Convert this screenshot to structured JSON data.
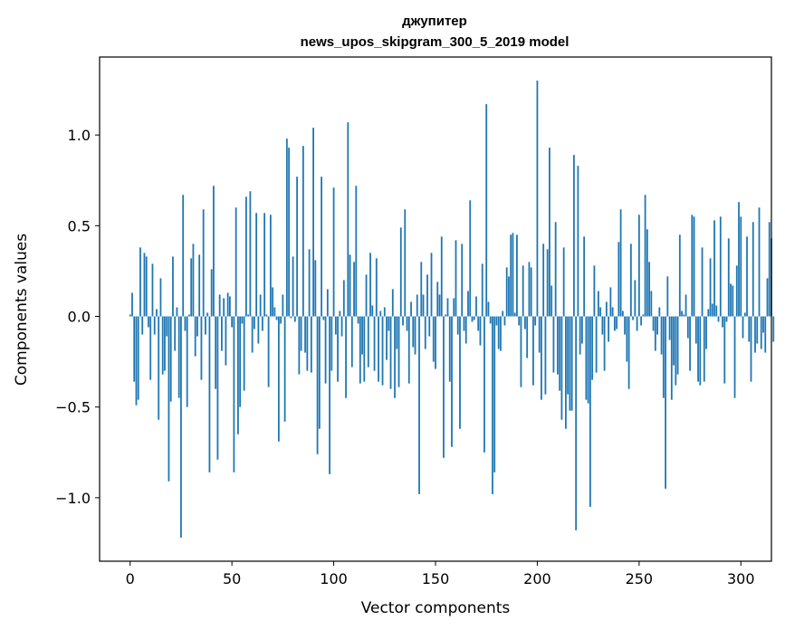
{
  "chart_data": {
    "type": "bar",
    "title_lines": [
      "джупитер",
      "news_upos_skipgram_300_5_2019 model"
    ],
    "xlabel": "Vector components",
    "ylabel": "Components values",
    "xlim": [
      -15,
      315
    ],
    "ylim": [
      -1.35,
      1.43
    ],
    "xticks": [
      0,
      50,
      100,
      150,
      200,
      250,
      300
    ],
    "xtick_labels": [
      "0",
      "50",
      "100",
      "150",
      "200",
      "250",
      "300"
    ],
    "yticks": [
      -1.0,
      -0.5,
      0.0,
      0.5,
      1.0
    ],
    "ytick_labels": [
      "−1.0",
      "−0.5",
      "0.0",
      "0.5",
      "1.0"
    ],
    "bar_color": "#1f77b4",
    "grid": false,
    "values": [
      0.01,
      0.13,
      -0.36,
      -0.49,
      -0.46,
      0.38,
      -0.1,
      0.35,
      0.33,
      -0.06,
      -0.35,
      0.29,
      -0.1,
      0.04,
      -0.57,
      0.21,
      -0.32,
      -0.3,
      -0.11,
      -0.91,
      -0.47,
      0.33,
      -0.19,
      0.05,
      -0.45,
      -1.22,
      0.67,
      -0.08,
      -0.5,
      0.01,
      0.32,
      0.4,
      -0.22,
      -0.11,
      0.34,
      -0.35,
      0.59,
      -0.1,
      0.02,
      -0.86,
      0.26,
      0.72,
      -0.4,
      -0.79,
      0.12,
      -0.19,
      0.1,
      -0.27,
      0.13,
      0.11,
      -0.06,
      -0.86,
      0.6,
      -0.65,
      -0.5,
      -0.04,
      -0.41,
      0.66,
      0.01,
      0.69,
      -0.2,
      -0.07,
      0.57,
      -0.15,
      0.12,
      -0.08,
      0.57,
      0.01,
      -0.39,
      0.56,
      0.16,
      0.05,
      -0.02,
      -0.69,
      -0.04,
      0.12,
      -0.58,
      0.98,
      0.93,
      -0.01,
      0.33,
      -0.03,
      0.77,
      -0.32,
      -0.19,
      0.94,
      -0.2,
      -0.3,
      0.37,
      -0.31,
      1.04,
      0.31,
      -0.76,
      -0.62,
      0.77,
      -0.02,
      -0.37,
      0.15,
      -0.87,
      -0.3,
      0.71,
      -0.1,
      -0.36,
      0.03,
      -0.11,
      0.2,
      -0.45,
      1.07,
      0.34,
      -0.28,
      0.3,
      0.72,
      -0.04,
      -0.37,
      -0.21,
      -0.36,
      0.23,
      -0.28,
      0.35,
      0.06,
      -0.3,
      0.32,
      -0.36,
      0.03,
      -0.38,
      0.05,
      -0.24,
      -0.08,
      -0.4,
      0.15,
      -0.45,
      -0.18,
      -0.39,
      0.49,
      -0.05,
      0.59,
      -0.08,
      -0.37,
      0.08,
      -0.17,
      -0.21,
      0.12,
      -0.98,
      0.3,
      0.12,
      -0.18,
      0.23,
      -0.11,
      0.35,
      -0.25,
      -0.29,
      0.19,
      0.12,
      0.44,
      -0.78,
      0.01,
      0.1,
      -0.36,
      -0.72,
      0.1,
      0.42,
      -0.1,
      -0.62,
      0.4,
      -0.08,
      -0.15,
      0.14,
      0.64,
      -0.03,
      -0.02,
      0.11,
      -0.08,
      -0.16,
      0.29,
      -0.75,
      1.17,
      0.08,
      -0.04,
      -0.98,
      -0.86,
      -0.05,
      -0.18,
      -0.19,
      0.03,
      -0.05,
      0.27,
      0.22,
      0.45,
      0.46,
      0.02,
      0.45,
      -0.05,
      -0.39,
      0.28,
      -0.07,
      -0.23,
      0.3,
      0.27,
      -0.38,
      -0.05,
      1.3,
      -0.2,
      -0.46,
      0.4,
      -0.43,
      0.37,
      0.93,
      0.17,
      -0.31,
      0.52,
      -0.32,
      -0.41,
      -0.57,
      0.38,
      -0.62,
      -0.43,
      -0.52,
      -0.52,
      0.89,
      -1.18,
      0.83,
      -0.21,
      -0.15,
      0.44,
      -0.46,
      -0.48,
      -1.05,
      -0.35,
      0.28,
      -0.31,
      0.14,
      0.05,
      -0.1,
      -0.3,
      0.08,
      -0.14,
      0.16,
      0.05,
      -0.08,
      -0.07,
      0.41,
      0.59,
      0.03,
      -0.1,
      -0.25,
      -0.4,
      0.4,
      -0.02,
      0.2,
      -0.08,
      0.56,
      -0.05,
      0.01,
      0.67,
      0.48,
      0.3,
      0.14,
      -0.08,
      -0.19,
      -0.1,
      0.05,
      -0.21,
      -0.45,
      -0.95,
      0.22,
      -0.13,
      -0.46,
      -0.27,
      -0.38,
      -0.32,
      0.45,
      0.03,
      0.01,
      0.12,
      -0.12,
      -0.3,
      0.56,
      0.55,
      -0.15,
      -0.36,
      -0.38,
      0.38,
      -0.36,
      -0.18,
      0.04,
      0.32,
      0.07,
      0.53,
      0.06,
      -0.03,
      0.55,
      -0.06,
      -0.37,
      -0.03,
      0.43,
      0.18,
      0.17,
      -0.45,
      0.28,
      0.63,
      0.55,
      -0.12,
      0.02,
      0.44,
      -0.14,
      -0.36,
      0.52,
      -0.2,
      -0.15,
      0.6,
      -0.18,
      -0.09,
      -0.2,
      0.21,
      0.52,
      0.43,
      -0.14
    ]
  }
}
